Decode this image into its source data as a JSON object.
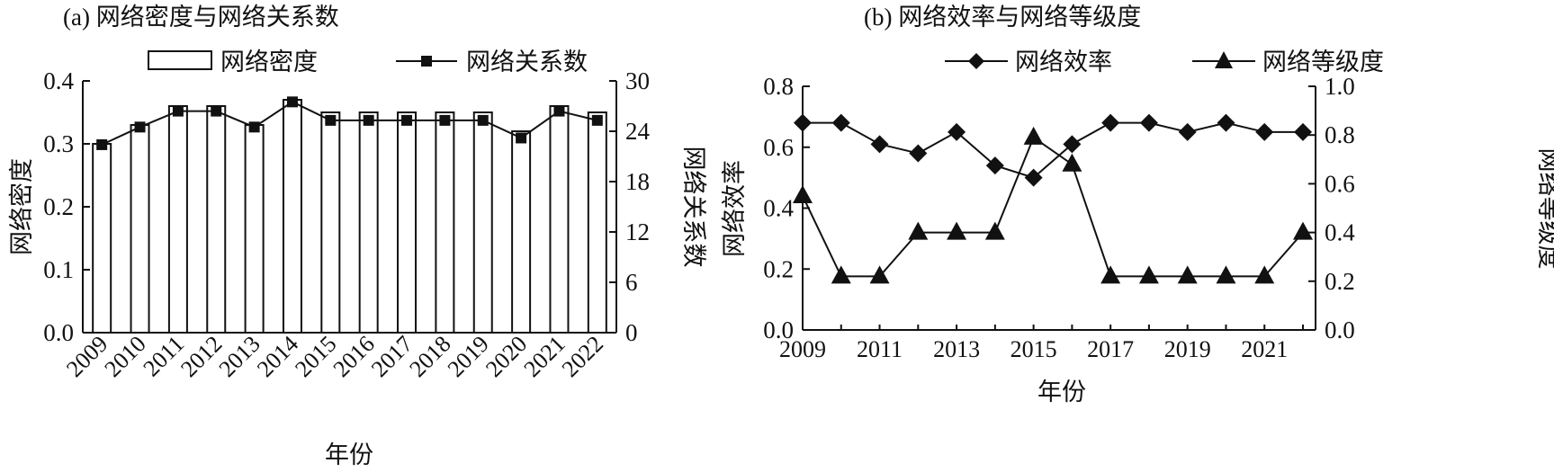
{
  "chart_data": [
    {
      "type": "bar+line",
      "title": "(a) 网络密度与网络关系数",
      "xlabel": "年份",
      "ylabel": "网络密度",
      "y2label": "网络关系数",
      "categories": [
        "2009",
        "2010",
        "2011",
        "2012",
        "2013",
        "2014",
        "2015",
        "2016",
        "2017",
        "2018",
        "2019",
        "2020",
        "2021",
        "2022"
      ],
      "ylim": [
        0,
        0.4
      ],
      "yticks": [
        "0.0",
        "0.1",
        "0.2",
        "0.3",
        "0.4"
      ],
      "y2lim": [
        0,
        30
      ],
      "y2ticks": [
        "0",
        "6",
        "12",
        "18",
        "24",
        "30"
      ],
      "legend": [
        "网络密度",
        "网络关系数"
      ],
      "legend_position": "top",
      "series": [
        {
          "name": "网络密度",
          "type": "bar",
          "values": [
            0.3,
            0.33,
            0.36,
            0.36,
            0.33,
            0.37,
            0.35,
            0.35,
            0.35,
            0.35,
            0.35,
            0.32,
            0.36,
            0.35
          ]
        },
        {
          "name": "网络关系数",
          "type": "line",
          "axis": "right",
          "values": [
            22.4,
            24.5,
            26.4,
            26.4,
            24.5,
            27.5,
            25.3,
            25.3,
            25.3,
            25.3,
            25.3,
            23.2,
            26.4,
            25.3
          ]
        }
      ]
    },
    {
      "type": "line",
      "title": "(b) 网络效率与网络等级度",
      "xlabel": "年份",
      "ylabel": "网络效率",
      "y2label": "网络等级度",
      "x": [
        2009,
        2010,
        2011,
        2012,
        2013,
        2014,
        2015,
        2016,
        2017,
        2018,
        2019,
        2020,
        2021,
        2022
      ],
      "xticks": [
        "2009",
        "2011",
        "2013",
        "2015",
        "2017",
        "2019",
        "2021"
      ],
      "ylim": [
        0,
        0.8
      ],
      "yticks": [
        "0.0",
        "0.2",
        "0.4",
        "0.6",
        "0.8"
      ],
      "y2lim": [
        0,
        1.0
      ],
      "y2ticks": [
        "0.0",
        "0.2",
        "0.4",
        "0.6",
        "0.8",
        "1.0"
      ],
      "legend": [
        "网络效率",
        "网络等级度"
      ],
      "legend_position": "top",
      "series": [
        {
          "name": "网络效率",
          "marker": "diamond",
          "axis": "left",
          "values": [
            0.68,
            0.68,
            0.61,
            0.58,
            0.65,
            0.54,
            0.5,
            0.61,
            0.68,
            0.68,
            0.65,
            0.68,
            0.65,
            0.65
          ]
        },
        {
          "name": "网络等级度",
          "marker": "triangle",
          "axis": "right",
          "values": [
            0.55,
            0.22,
            0.22,
            0.4,
            0.4,
            0.4,
            0.79,
            0.68,
            0.22,
            0.22,
            0.22,
            0.22,
            0.22,
            0.4
          ]
        }
      ]
    }
  ]
}
